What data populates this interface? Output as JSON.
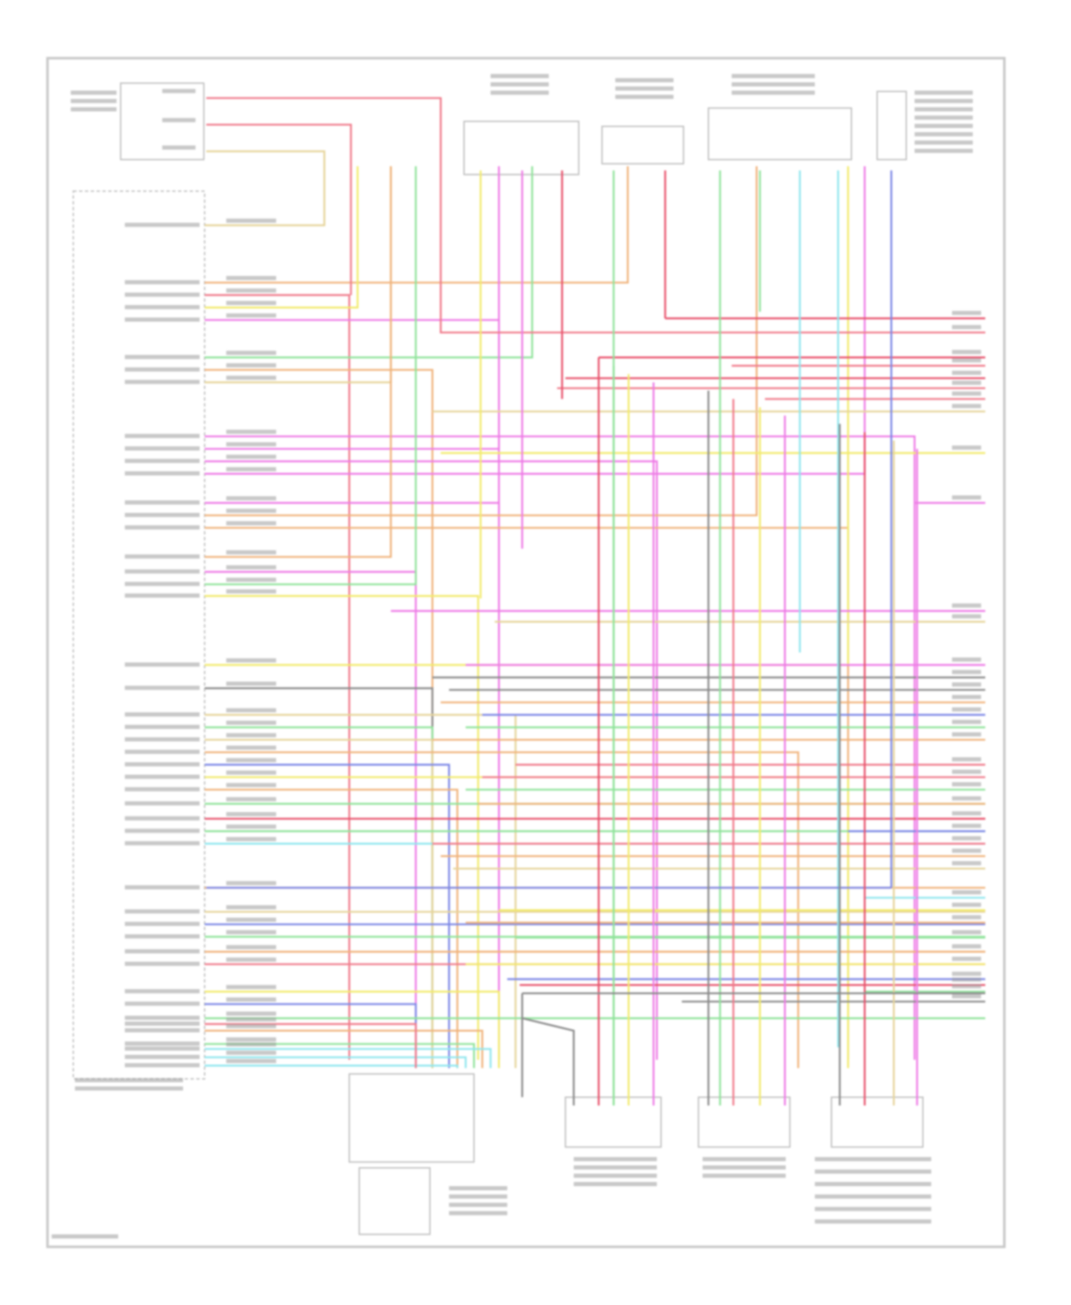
{
  "diagram": {
    "frame_color": "#c8c8c8",
    "label_color": "#9a9a9a",
    "wire_palette": {
      "pink": "#f07a8a",
      "red": "#e8506a",
      "yellow": "#f2ea6a",
      "tan": "#e6d49a",
      "green": "#8fe39a",
      "magenta": "#ee7ae6",
      "cyan": "#8ee6ee",
      "blue": "#7b86e6",
      "orange": "#f0b27a",
      "gray": "#8a8a8a"
    },
    "left_connector_wire_colors": [
      "tan",
      "orange",
      "pink",
      "yellow",
      "magenta",
      "green",
      "orange",
      "tan",
      "magenta",
      "magenta",
      "magenta",
      "magenta",
      "magenta",
      "orange",
      "orange",
      "orange",
      "magenta",
      "green",
      "yellow",
      "yellow",
      "gray",
      "tan",
      "green",
      "tan",
      "orange",
      "blue",
      "yellow",
      "orange",
      "green",
      "red",
      "green",
      "cyan",
      "orange",
      "tan",
      "blue",
      "green",
      "orange",
      "pink",
      "yellow",
      "blue",
      "green",
      "orange",
      "green",
      "cyan",
      "cyan",
      "cyan",
      "pink"
    ],
    "right_edge_wire_colors": [
      "red",
      "pink",
      "red",
      "pink",
      "red",
      "pink",
      "pink",
      "tan",
      "yellow",
      "magenta",
      "magenta",
      "tan",
      "magenta",
      "gray",
      "gray",
      "orange",
      "blue",
      "green",
      "orange",
      "pink",
      "pink",
      "green",
      "orange",
      "red",
      "blue",
      "pink",
      "orange",
      "tan",
      "cyan",
      "yellow",
      "orange",
      "green",
      "orange",
      "yellow",
      "blue",
      "green",
      "red",
      "gray"
    ]
  }
}
